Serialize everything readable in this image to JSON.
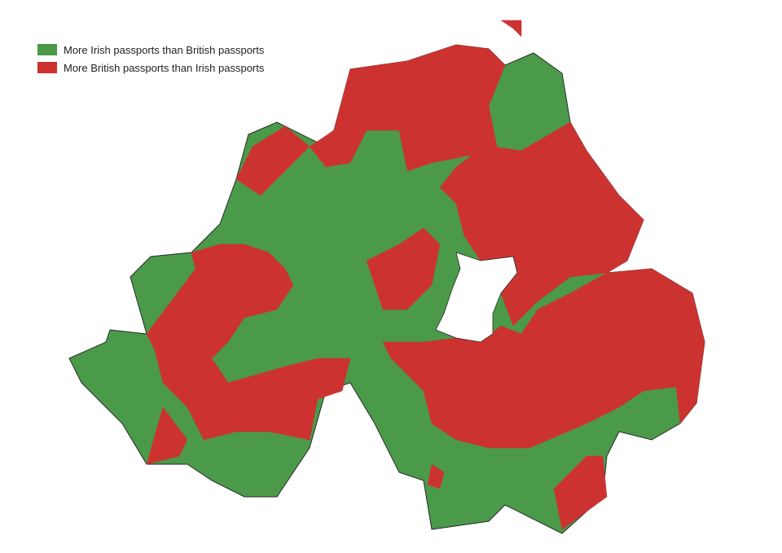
{
  "legend": {
    "items": [
      {
        "label": "More Irish passports than British passports",
        "color": "#4a9a4a"
      },
      {
        "label": "More British passports than Irish passports",
        "color": "#cc3330"
      }
    ]
  },
  "map": {
    "region": "Northern Ireland",
    "background_color": "#ffffff",
    "water_color": "#ffffff",
    "border_color": "#2a2a2a"
  }
}
